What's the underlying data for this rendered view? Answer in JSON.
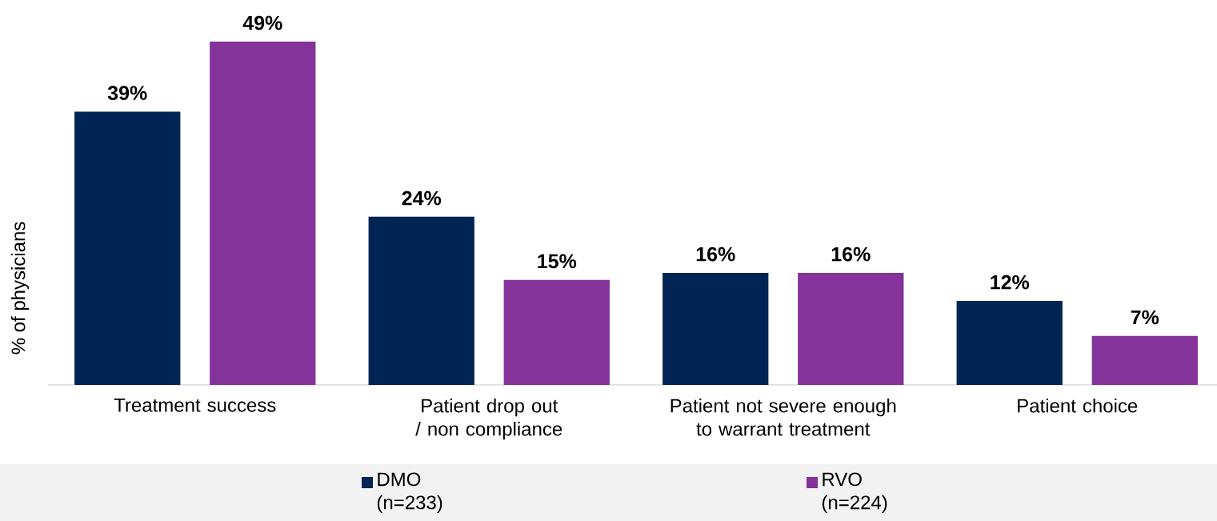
{
  "chart_data": {
    "type": "bar",
    "ylabel": "% of physicians",
    "categories": [
      "Treatment success",
      "Patient drop out / non compliance",
      "Patient not severe enough to warrant treatment",
      "Patient choice"
    ],
    "series": [
      {
        "name": "DMO (n=233)",
        "color": "#002554",
        "values": [
          39,
          24,
          16,
          12
        ],
        "value_labels": [
          "39%",
          "24%",
          "16%",
          "12%"
        ]
      },
      {
        "name": "RVO (n=224)",
        "color": "#833399",
        "values": [
          49,
          15,
          16,
          7
        ],
        "value_labels": [
          "49%",
          "15%",
          "16%",
          "7%"
        ]
      }
    ],
    "legend": "bottom"
  }
}
